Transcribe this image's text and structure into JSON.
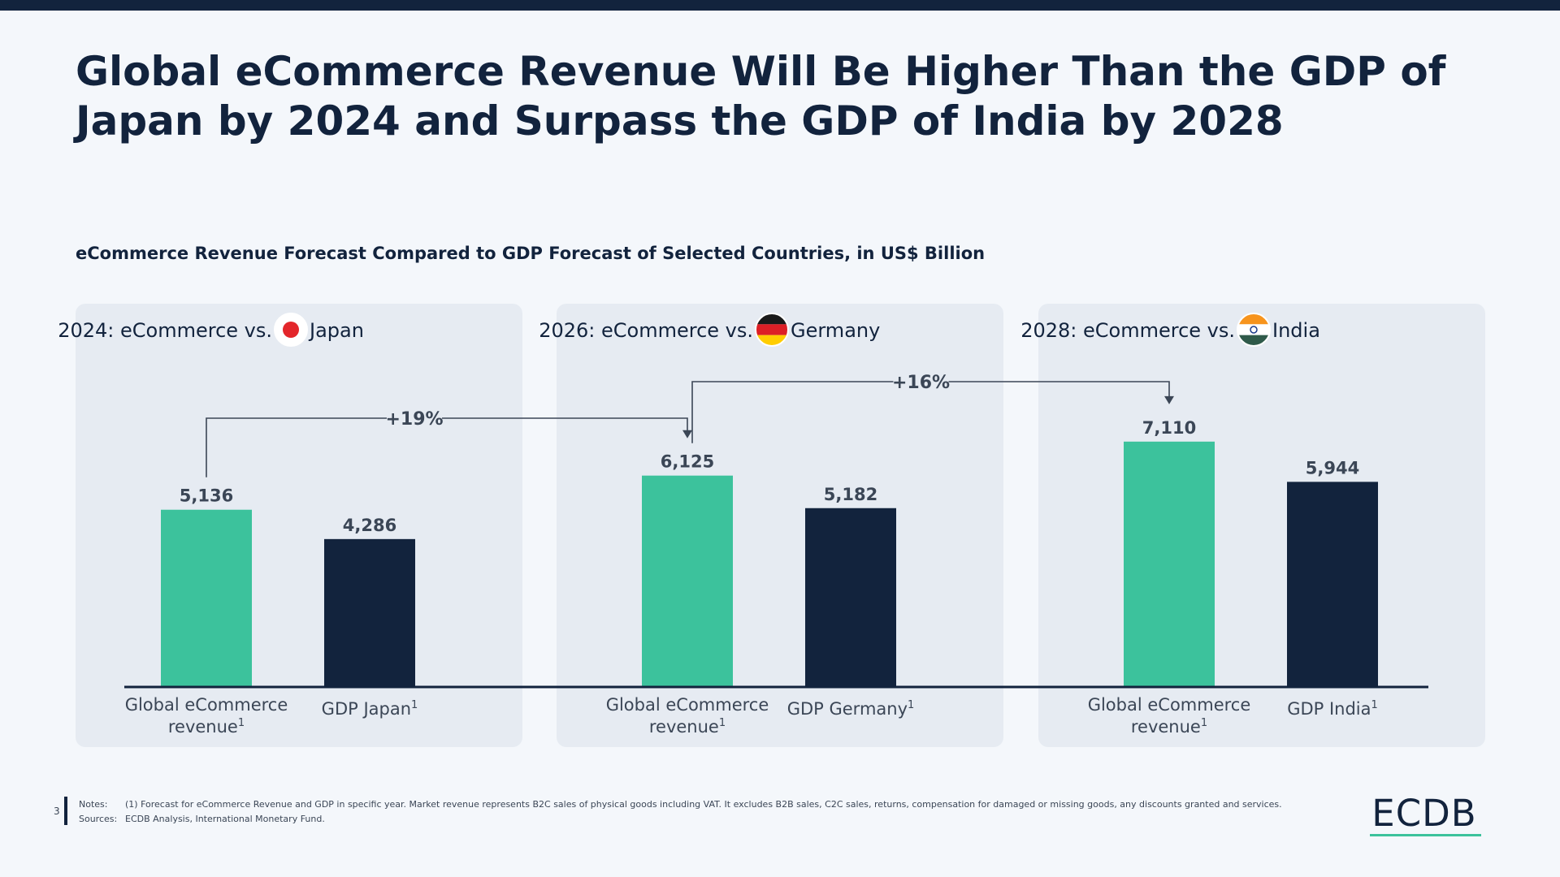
{
  "title": "Global eCommerce Revenue Will Be Higher Than the GDP of Japan by 2024 and Surpass the GDP of India by 2028",
  "subtitle": "eCommerce Revenue Forecast Compared to GDP Forecast of Selected Countries, in US$ Billion",
  "colors": {
    "ecommerce": "#3cc29c",
    "gdp": "#12233d",
    "panel": "#e6ebf2",
    "background": "#f4f7fb"
  },
  "chart_data": {
    "type": "bar",
    "unit": "US$ Billion",
    "grid": false,
    "panels": [
      {
        "title_prefix": "2024: eCommerce vs.",
        "country": "Japan",
        "flag_icon": "japan-flag-icon",
        "categories": [
          "Global eCommerce revenue",
          "GDP Japan"
        ],
        "category_footnote": "1",
        "values": [
          5136,
          4286
        ],
        "value_labels": [
          "5,136",
          "4,286"
        ]
      },
      {
        "title_prefix": "2026: eCommerce vs.",
        "country": "Germany",
        "flag_icon": "germany-flag-icon",
        "categories": [
          "Global eCommerce revenue",
          "GDP Germany"
        ],
        "category_footnote": "1",
        "values": [
          6125,
          5182
        ],
        "value_labels": [
          "6,125",
          "5,182"
        ]
      },
      {
        "title_prefix": "2028: eCommerce vs.",
        "country": "India",
        "flag_icon": "india-flag-icon",
        "categories": [
          "Global eCommerce revenue",
          "GDP India"
        ],
        "category_footnote": "1",
        "values": [
          7110,
          5944
        ],
        "value_labels": [
          "7,110",
          "5,944"
        ]
      }
    ],
    "annotations": [
      {
        "label": "+19%",
        "from_panel": 0,
        "to_panel": 1
      },
      {
        "label": "+16%",
        "from_panel": 1,
        "to_panel": 2
      }
    ]
  },
  "footer": {
    "page_number": "3",
    "notes_label": "Notes:",
    "notes": "(1) Forecast for eCommerce Revenue and GDP in specific year. Market revenue represents B2C sales of physical goods including VAT. It excludes B2B sales, C2C sales, returns, compensation for damaged or missing goods, any discounts granted and services.",
    "sources_label": "Sources:",
    "sources": "ECDB Analysis, International Monetary Fund."
  },
  "logo": "ECDB"
}
